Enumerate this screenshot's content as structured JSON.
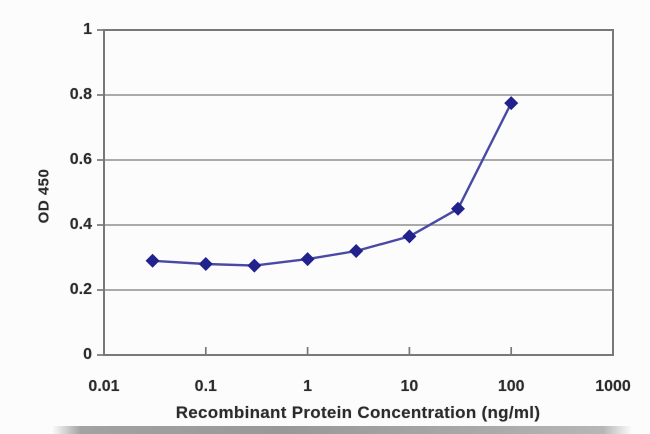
{
  "chart_data": {
    "type": "line",
    "title": "",
    "xlabel": "Recombinant Protein Concentration (ng/ml)",
    "ylabel": "OD 450",
    "x_scale": "log",
    "x": [
      0.03,
      0.1,
      0.3,
      1,
      3,
      10,
      30,
      100
    ],
    "values": [
      0.29,
      0.28,
      0.275,
      0.295,
      0.32,
      0.365,
      0.45,
      0.775
    ],
    "xlim": [
      0.01,
      1000
    ],
    "ylim": [
      0,
      1
    ],
    "x_ticks": [
      0.01,
      0.1,
      1,
      10,
      100,
      1000
    ],
    "x_tick_labels": [
      "0.01",
      "0.1",
      "1",
      "10",
      "100",
      "1000"
    ],
    "y_ticks": [
      0,
      0.2,
      0.4,
      0.6,
      0.8,
      1
    ],
    "y_tick_labels": [
      "0",
      "0.2",
      "0.4",
      "0.6",
      "0.8",
      "1"
    ],
    "grid": "horizontal",
    "legend": "none",
    "marker": "diamond",
    "colors": {
      "line": "#4a4aa4",
      "marker": "#22228e",
      "grid": "#9f9f9f",
      "axis_frame": "#787878",
      "text": "#2b2b2b"
    }
  }
}
